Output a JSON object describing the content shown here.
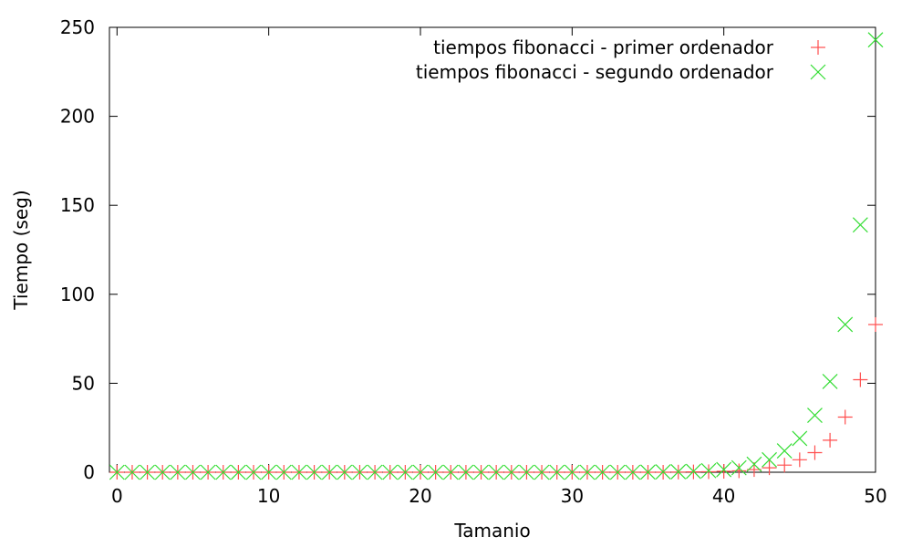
{
  "chart_data": {
    "type": "scatter",
    "xlabel": "Tamanio",
    "ylabel": "Tiempo (seg)",
    "xlim": [
      -0.5,
      50
    ],
    "ylim": [
      0,
      250
    ],
    "xticks": [
      0,
      10,
      20,
      30,
      40,
      50
    ],
    "yticks": [
      0,
      50,
      100,
      150,
      200,
      250
    ],
    "grid": false,
    "legend_position": "top-right",
    "series": [
      {
        "name": "tiempos fibonacci - primer ordenador",
        "marker": "plus",
        "color": "#ff4d4d",
        "x": [
          0,
          1,
          2,
          3,
          4,
          5,
          6,
          7,
          8,
          9,
          10,
          11,
          12,
          13,
          14,
          15,
          16,
          17,
          18,
          19,
          20,
          21,
          22,
          23,
          24,
          25,
          26,
          27,
          28,
          29,
          30,
          31,
          32,
          33,
          34,
          35,
          36,
          37,
          38,
          39,
          40,
          41,
          42,
          43,
          44,
          45,
          46,
          47,
          48,
          49,
          50
        ],
        "y": [
          0,
          0,
          0,
          0,
          0,
          0,
          0,
          0,
          0,
          0,
          0,
          0,
          0,
          0,
          0,
          0,
          0,
          0,
          0,
          0,
          0,
          0,
          0,
          0,
          0,
          0,
          0,
          0,
          0,
          0,
          0,
          0,
          0,
          0,
          0,
          0,
          0,
          0.1,
          0.2,
          0.3,
          0.5,
          0.8,
          1.5,
          2.5,
          4,
          7,
          11,
          18,
          31,
          52,
          83
        ]
      },
      {
        "name": "tiempos fibonacci - segundo ordenador",
        "marker": "cross",
        "color": "#33dd33",
        "x": [
          0,
          1,
          2,
          3,
          4,
          5,
          6,
          7,
          8,
          9,
          10,
          11,
          12,
          13,
          14,
          15,
          16,
          17,
          18,
          19,
          20,
          21,
          22,
          23,
          24,
          25,
          26,
          27,
          28,
          29,
          30,
          31,
          32,
          33,
          34,
          35,
          36,
          37,
          38,
          39,
          40,
          41,
          42,
          43,
          44,
          45,
          46,
          47,
          48,
          49,
          50
        ],
        "y": [
          0,
          0,
          0,
          0,
          0,
          0,
          0,
          0,
          0,
          0,
          0,
          0,
          0,
          0,
          0,
          0,
          0,
          0,
          0,
          0,
          0,
          0,
          0,
          0,
          0,
          0,
          0,
          0,
          0,
          0,
          0,
          0,
          0,
          0,
          0,
          0.1,
          0.2,
          0.3,
          0.5,
          0.9,
          1.5,
          2.5,
          4.5,
          7,
          12,
          19,
          32,
          51,
          83,
          139,
          243
        ]
      }
    ]
  }
}
